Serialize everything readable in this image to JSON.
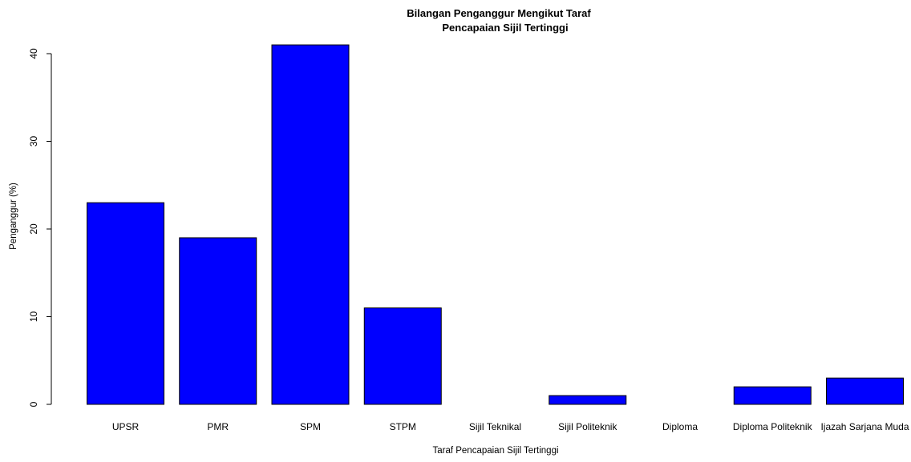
{
  "chart_data": {
    "type": "bar",
    "title_lines": [
      "Bilangan Penganggur Mengikut Taraf",
      "Pencapaian Sijil Tertinggi"
    ],
    "xlabel": "Taraf Pencapaian Sijil Tertinggi",
    "ylabel": "Penganggur (%)",
    "categories": [
      "UPSR",
      "PMR",
      "SPM",
      "STPM",
      "Sijil Teknikal",
      "Sijil Politeknik",
      "Diploma",
      "Diploma Politeknik",
      "Ijazah Sarjana Muda"
    ],
    "values": [
      23,
      19,
      41,
      11,
      0,
      1,
      0,
      2,
      3
    ],
    "yticks": [
      0,
      10,
      20,
      30,
      40
    ],
    "ylim": [
      0,
      41
    ],
    "bar_color": "#0000ff",
    "bar_edge_color": "#000000",
    "grid": false,
    "legend": "none"
  }
}
